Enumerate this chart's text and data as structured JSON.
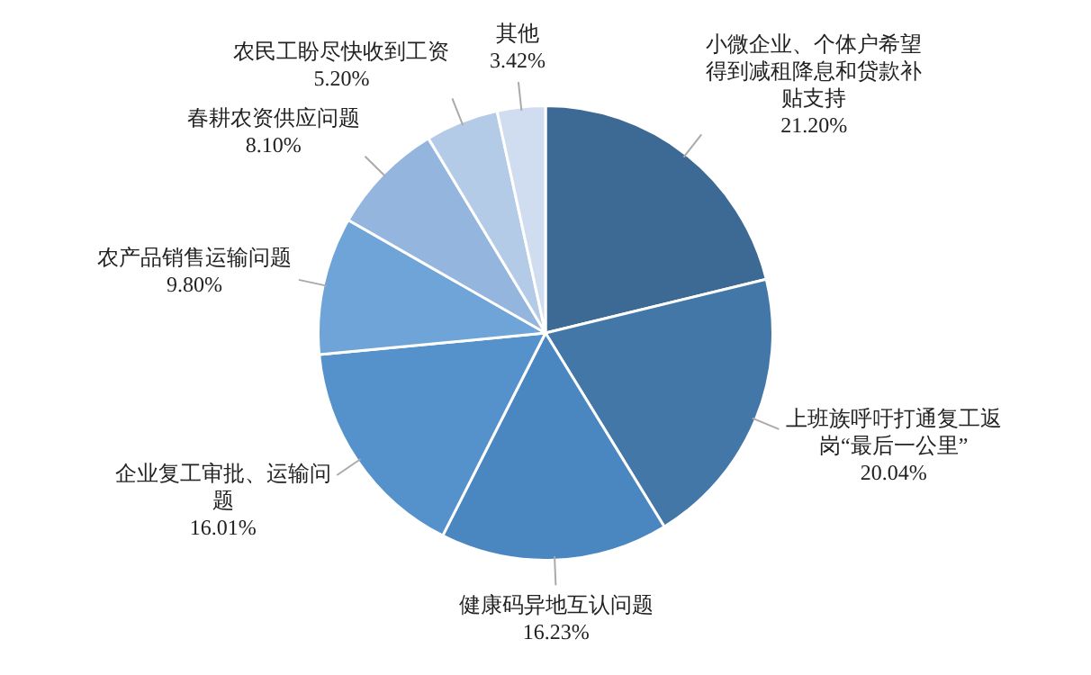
{
  "chart_data": {
    "type": "pie",
    "categories": [
      "小微企业、个体户希望得到减租降息和贷款补贴支持",
      "上班族呼吁打通复工返岗“最后一公里”",
      "健康码异地互认问题",
      "企业复工审批、运输问题",
      "农产品销售运输问题",
      "春耕农资供应问题",
      "农民工盼尽快收到工资",
      "其他"
    ],
    "values": [
      21.2,
      20.04,
      16.23,
      16.01,
      9.8,
      8.1,
      5.2,
      3.42
    ],
    "value_labels": [
      "21.20%",
      "20.04%",
      "16.23%",
      "16.01%",
      "9.80%",
      "8.10%",
      "5.20%",
      "3.42%"
    ],
    "colors": [
      "#3d6a94",
      "#4377a8",
      "#4a86c0",
      "#5592cc",
      "#6ea4d8",
      "#94b5de",
      "#b4cbe8",
      "#d0ddf0"
    ],
    "legend": false
  }
}
